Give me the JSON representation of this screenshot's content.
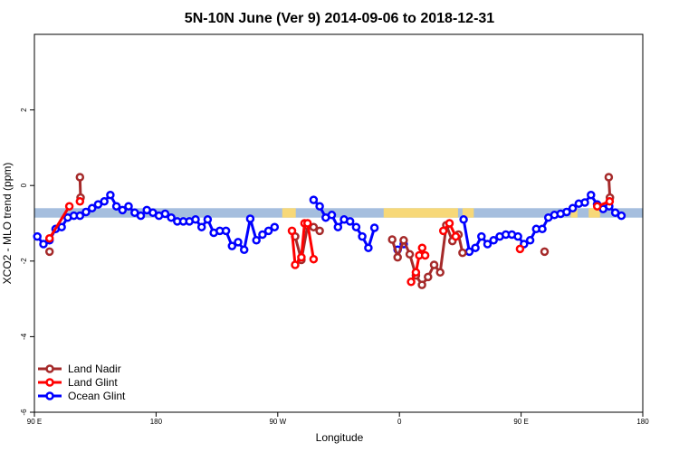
{
  "chart_data": {
    "type": "line",
    "title": "5N-10N June (Ver 9)   2014-09-06 to 2018-12-31",
    "xlabel": "Longitude",
    "ylabel": "XCO2 - MLO trend (ppm)",
    "xlim": [
      -90,
      180
    ],
    "ylim": [
      -6,
      4
    ],
    "xticks": [
      {
        "value": -90,
        "label": "90 E"
      },
      {
        "value": -36,
        "label": "180"
      },
      {
        "value": 18,
        "label": "90 W"
      },
      {
        "value": 72,
        "label": "0"
      },
      {
        "value": 126,
        "label": "90 E"
      },
      {
        "value": 180,
        "label": "180"
      }
    ],
    "yticks": [
      -6,
      -4,
      -2,
      0,
      2
    ],
    "land_ocean_band": {
      "y_range": [
        -0.85,
        -0.6
      ],
      "ocean_color": "#a5bede",
      "land_color": "#f7d878",
      "land_x_ranges": [
        [
          20,
          26
        ],
        [
          65,
          98
        ],
        [
          100,
          105
        ],
        [
          148,
          151
        ],
        [
          156,
          161
        ]
      ]
    },
    "legend": {
      "position": "bottom-left",
      "entries": [
        "Land Nadir",
        "Land Glint",
        "Ocean Glint"
      ]
    },
    "series": [
      {
        "name": "Land Nadir",
        "color": "#a52a2a",
        "segments": [
          [
            [
              -83.3,
              -1.75
            ]
          ],
          [
            [
              -69.8,
              0.22
            ],
            [
              -69.5,
              -0.32
            ]
          ],
          [
            [
              25.7,
              -1.35
            ],
            [
              28.5,
              -1.97
            ],
            [
              31.2,
              -1.07
            ],
            [
              33.9,
              -1.1
            ],
            [
              36.6,
              -1.2
            ]
          ],
          [
            [
              68.8,
              -1.43
            ],
            [
              71.2,
              -1.9
            ],
            [
              73.9,
              -1.45
            ],
            [
              76.6,
              -1.82
            ],
            [
              79.3,
              -2.38
            ],
            [
              82.0,
              -2.63
            ],
            [
              84.7,
              -2.42
            ],
            [
              87.4,
              -2.1
            ],
            [
              90.1,
              -2.3
            ],
            [
              92.8,
              -1.05
            ],
            [
              95.5,
              -1.47
            ],
            [
              98.2,
              -1.3
            ],
            [
              100.0,
              -1.78
            ]
          ],
          [
            [
              136.4,
              -1.75
            ]
          ],
          [
            [
              164.9,
              0.22
            ],
            [
              165.4,
              -0.32
            ]
          ]
        ]
      },
      {
        "name": "Land Glint",
        "color": "#ff0000",
        "segments": [
          [
            [
              -83.3,
              -1.4
            ],
            [
              -74.5,
              -0.55
            ]
          ],
          [
            [
              -69.8,
              -0.42
            ]
          ],
          [
            [
              24.3,
              -1.2
            ],
            [
              25.7,
              -2.1
            ],
            [
              28.5,
              -1.9
            ],
            [
              29.9,
              -1.0
            ],
            [
              31.2,
              -1.0
            ],
            [
              33.9,
              -1.95
            ]
          ],
          [
            [
              77.2,
              -2.55
            ],
            [
              79.3,
              -2.3
            ],
            [
              80.8,
              -1.85
            ],
            [
              82.1,
              -1.65
            ],
            [
              83.4,
              -1.85
            ]
          ],
          [
            [
              91.5,
              -1.2
            ],
            [
              94.2,
              -1.0
            ],
            [
              97.0,
              -1.35
            ]
          ],
          [
            [
              125.5,
              -1.68
            ]
          ],
          [
            [
              159.8,
              -0.55
            ],
            [
              165.3,
              -0.42
            ]
          ]
        ]
      },
      {
        "name": "Ocean Glint",
        "color": "#0000ff",
        "segments": [
          [
            [
              -88.7,
              -1.35
            ],
            [
              -86.0,
              -1.55
            ],
            [
              -83.3,
              -1.45
            ],
            [
              -80.6,
              -1.15
            ],
            [
              -77.9,
              -1.1
            ],
            [
              -75.2,
              -0.85
            ],
            [
              -72.5,
              -0.8
            ],
            [
              -69.8,
              -0.8
            ],
            [
              -67.1,
              -0.7
            ],
            [
              -64.4,
              -0.6
            ],
            [
              -61.7,
              -0.5
            ],
            [
              -59.0,
              -0.42
            ],
            [
              -56.3,
              -0.25
            ],
            [
              -53.6,
              -0.55
            ],
            [
              -50.9,
              -0.65
            ],
            [
              -48.2,
              -0.55
            ],
            [
              -45.5,
              -0.72
            ],
            [
              -42.8,
              -0.8
            ],
            [
              -40.1,
              -0.65
            ],
            [
              -37.4,
              -0.72
            ],
            [
              -34.7,
              -0.8
            ],
            [
              -32.0,
              -0.75
            ],
            [
              -29.3,
              -0.85
            ],
            [
              -26.6,
              -0.95
            ],
            [
              -23.9,
              -0.95
            ],
            [
              -21.2,
              -0.95
            ],
            [
              -18.5,
              -0.9
            ],
            [
              -15.8,
              -1.1
            ],
            [
              -13.1,
              -0.9
            ],
            [
              -10.4,
              -1.25
            ],
            [
              -7.7,
              -1.2
            ],
            [
              -5.0,
              -1.2
            ],
            [
              -2.3,
              -1.6
            ],
            [
              0.4,
              -1.5
            ],
            [
              3.1,
              -1.7
            ],
            [
              5.8,
              -0.88
            ],
            [
              8.5,
              -1.45
            ],
            [
              11.2,
              -1.3
            ],
            [
              13.9,
              -1.2
            ],
            [
              16.6,
              -1.1
            ]
          ],
          [
            [
              33.9,
              -0.38
            ],
            [
              36.6,
              -0.55
            ],
            [
              39.3,
              -0.85
            ],
            [
              42.0,
              -0.78
            ],
            [
              44.7,
              -1.1
            ],
            [
              47.4,
              -0.9
            ],
            [
              50.1,
              -0.95
            ],
            [
              52.8,
              -1.1
            ],
            [
              55.5,
              -1.35
            ],
            [
              58.2,
              -1.65
            ],
            [
              60.9,
              -1.12
            ]
          ],
          [
            [
              71.2,
              -1.7
            ],
            [
              73.9,
              -1.55
            ]
          ],
          [
            [
              100.5,
              -0.9
            ],
            [
              103.0,
              -1.75
            ],
            [
              105.7,
              -1.65
            ],
            [
              108.4,
              -1.35
            ],
            [
              111.1,
              -1.55
            ],
            [
              113.8,
              -1.45
            ],
            [
              116.5,
              -1.35
            ],
            [
              119.2,
              -1.3
            ],
            [
              121.9,
              -1.3
            ],
            [
              124.6,
              -1.35
            ],
            [
              127.3,
              -1.55
            ],
            [
              130.0,
              -1.45
            ],
            [
              132.7,
              -1.15
            ],
            [
              135.4,
              -1.15
            ],
            [
              138.1,
              -0.85
            ],
            [
              140.8,
              -0.78
            ],
            [
              143.5,
              -0.75
            ],
            [
              146.2,
              -0.7
            ],
            [
              148.9,
              -0.6
            ],
            [
              151.6,
              -0.48
            ],
            [
              154.3,
              -0.45
            ],
            [
              157.0,
              -0.25
            ],
            [
              159.7,
              -0.5
            ],
            [
              162.4,
              -0.62
            ],
            [
              165.1,
              -0.55
            ],
            [
              167.8,
              -0.72
            ],
            [
              170.5,
              -0.8
            ]
          ]
        ]
      }
    ]
  }
}
